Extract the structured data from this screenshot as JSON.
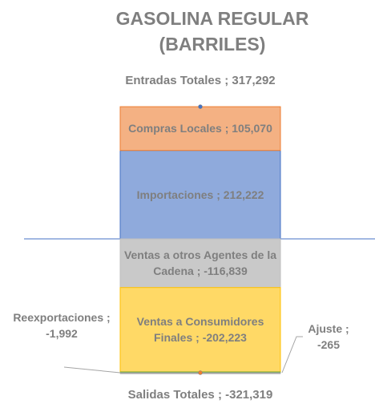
{
  "chart_data": {
    "type": "bar",
    "title": "GASOLINA REGULAR",
    "subtitle": "(BARRILES)",
    "series": [
      {
        "color": "#8faadc",
        "values": [
          212222
        ],
        "value_labels": [
          "Importaciones ; 212,222"
        ]
      },
      {
        "color": "#f4b183",
        "values": [
          105070
        ],
        "value_labels": [
          "Compras Locales ; 105,070"
        ]
      },
      {
        "color": "#c9c9c9",
        "values": [
          -116839
        ],
        "value_labels": [
          "Ventas a otros Agentes de la Cadena ; -116,839"
        ]
      },
      {
        "color": "#ffd966",
        "values": [
          -202223
        ],
        "value_labels": [
          "Ventas a Consumidores Finales ; -202,223"
        ]
      },
      {
        "color": "#70ad47",
        "values": [
          -1992
        ],
        "value_labels": [
          "Reexportaciones ; -1,992"
        ]
      },
      {
        "color": "#a5a5a5",
        "values": [
          -265
        ],
        "value_labels": [
          "Ajuste ; -265"
        ]
      }
    ],
    "totals": [
      {
        "value": 317292,
        "label": "Entradas Totales ; 317,292",
        "color": "#4472c4"
      },
      {
        "value": -321319,
        "label": "Salidas Totales ; -321,319",
        "color": "#ed7d31"
      }
    ]
  }
}
